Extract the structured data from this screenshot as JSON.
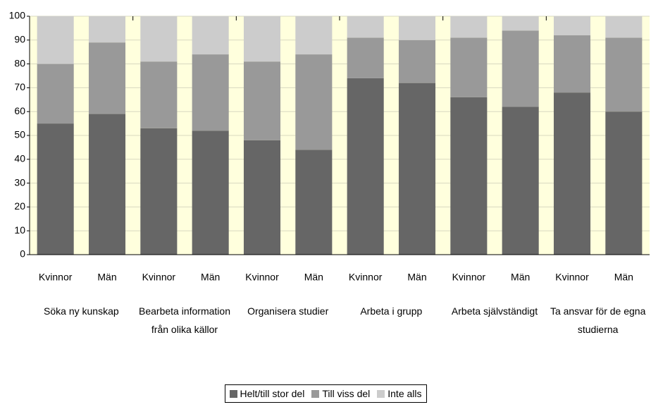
{
  "chart_data": {
    "type": "stacked_bar",
    "categories": [
      "Kvinnor",
      "Män",
      "Kvinnor",
      "Män",
      "Kvinnor",
      "Män",
      "Kvinnor",
      "Män",
      "Kvinnor",
      "Män",
      "Kvinnor",
      "Män"
    ],
    "groups": [
      "Söka ny kunskap",
      "Bearbeta information från olika källor",
      "Organisera studier",
      "Arbeta i grupp",
      "Arbeta självständigt",
      "Ta ansvar för de egna studierna"
    ],
    "series": [
      {
        "name": "Helt/till stor del",
        "color": "#666666",
        "values": [
          55,
          59,
          53,
          52,
          48,
          44,
          74,
          72,
          66,
          62,
          68,
          60
        ]
      },
      {
        "name": "Till viss del",
        "color": "#999999",
        "values": [
          25,
          30,
          28,
          32,
          33,
          40,
          17,
          18,
          25,
          32,
          24,
          31
        ]
      },
      {
        "name": "Inte alls",
        "color": "#cccccc",
        "values": [
          20,
          11,
          19,
          16,
          19,
          16,
          9,
          10,
          9,
          6,
          8,
          9
        ]
      }
    ],
    "ylim": [
      0,
      100
    ],
    "yticks": [
      0,
      10,
      20,
      30,
      40,
      50,
      60,
      70,
      80,
      90,
      100
    ],
    "grid": true,
    "plot_background": "#ffffdd",
    "legend": "bottom"
  }
}
